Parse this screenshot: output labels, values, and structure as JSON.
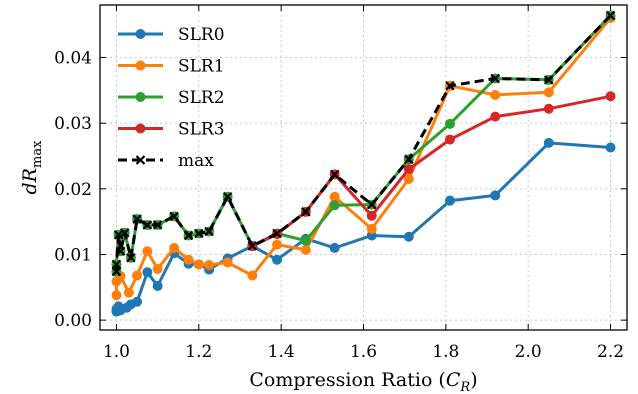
{
  "chart_data": {
    "type": "line",
    "xlabel": "Compression Ratio (",
    "xlabel_symbol": "C",
    "xlabel_sub": "R",
    "xlabel_close": ")",
    "ylabel_main": "dR",
    "ylabel_sub": "max",
    "xlim": [
      0.96,
      2.24
    ],
    "ylim": [
      -0.0015,
      0.048
    ],
    "xticks": [
      1.0,
      1.2,
      1.4,
      1.6,
      1.8,
      2.0,
      2.2
    ],
    "xtick_labels": [
      "1.0",
      "1.2",
      "1.4",
      "1.6",
      "1.8",
      "2.0",
      "2.2"
    ],
    "yticks": [
      0.0,
      0.01,
      0.02,
      0.03,
      0.04
    ],
    "ytick_labels": [
      "0.00",
      "0.01",
      "0.02",
      "0.03",
      "0.04"
    ],
    "grid": true,
    "legend_position": "top-left",
    "series": [
      {
        "name": "SLR0",
        "color": "#1f77b4",
        "marker": "circle",
        "points": [
          [
            1.0,
            0.0013
          ],
          [
            1.0,
            0.0017
          ],
          [
            1.005,
            0.0021
          ],
          [
            1.01,
            0.0015
          ],
          [
            1.025,
            0.0019
          ],
          [
            1.035,
            0.0024
          ],
          [
            1.05,
            0.0028
          ],
          [
            1.075,
            0.0073
          ],
          [
            1.1,
            0.0052
          ],
          [
            1.14,
            0.0102
          ],
          [
            1.175,
            0.0086
          ],
          [
            1.2,
            0.0085
          ],
          [
            1.225,
            0.0077
          ],
          [
            1.27,
            0.0094
          ],
          [
            1.33,
            0.0113
          ],
          [
            1.39,
            0.0092
          ],
          [
            1.46,
            0.0124
          ],
          [
            1.53,
            0.011
          ],
          [
            1.62,
            0.0129
          ],
          [
            1.71,
            0.0127
          ],
          [
            1.81,
            0.0182
          ],
          [
            1.92,
            0.019
          ],
          [
            2.05,
            0.027
          ],
          [
            2.2,
            0.0263
          ]
        ]
      },
      {
        "name": "SLR1",
        "color": "#ff7f0e",
        "marker": "circle",
        "points": [
          [
            1.0,
            0.0038
          ],
          [
            1.0,
            0.0059
          ],
          [
            1.01,
            0.0067
          ],
          [
            1.03,
            0.0042
          ],
          [
            1.05,
            0.0068
          ],
          [
            1.075,
            0.0105
          ],
          [
            1.1,
            0.0078
          ],
          [
            1.14,
            0.011
          ],
          [
            1.175,
            0.0092
          ],
          [
            1.2,
            0.0085
          ],
          [
            1.225,
            0.0084
          ],
          [
            1.27,
            0.0088
          ],
          [
            1.33,
            0.0068
          ],
          [
            1.39,
            0.0115
          ],
          [
            1.46,
            0.0107
          ],
          [
            1.53,
            0.0188
          ],
          [
            1.62,
            0.0139
          ],
          [
            1.71,
            0.0215
          ],
          [
            1.81,
            0.0357
          ],
          [
            1.92,
            0.0343
          ],
          [
            2.05,
            0.0347
          ],
          [
            2.2,
            0.046
          ]
        ]
      },
      {
        "name": "SLR2",
        "color": "#2ca02c",
        "marker": "circle",
        "points": [
          [
            1.0,
            0.0074
          ],
          [
            1.0,
            0.0085
          ],
          [
            1.005,
            0.013
          ],
          [
            1.01,
            0.0105
          ],
          [
            1.02,
            0.0133
          ],
          [
            1.035,
            0.0095
          ],
          [
            1.05,
            0.0154
          ],
          [
            1.075,
            0.0145
          ],
          [
            1.1,
            0.0145
          ],
          [
            1.14,
            0.0158
          ],
          [
            1.175,
            0.0129
          ],
          [
            1.2,
            0.0132
          ],
          [
            1.225,
            0.0135
          ],
          [
            1.27,
            0.0188
          ],
          [
            1.33,
            0.0113
          ],
          [
            1.39,
            0.0132
          ],
          [
            1.46,
            0.0121
          ],
          [
            1.53,
            0.0175
          ],
          [
            1.62,
            0.0176
          ],
          [
            1.71,
            0.0245
          ],
          [
            1.81,
            0.0299
          ],
          [
            1.92,
            0.0368
          ],
          [
            2.05,
            0.0366
          ],
          [
            2.2,
            0.0464
          ]
        ]
      },
      {
        "name": "SLR3",
        "color": "#d62728",
        "marker": "circle",
        "points": [
          [
            1.33,
            0.0113
          ],
          [
            1.39,
            0.0131
          ],
          [
            1.46,
            0.0165
          ],
          [
            1.53,
            0.0222
          ],
          [
            1.62,
            0.0159
          ],
          [
            1.71,
            0.023
          ],
          [
            1.81,
            0.0275
          ],
          [
            1.92,
            0.031
          ],
          [
            2.05,
            0.0322
          ],
          [
            2.2,
            0.0341
          ]
        ]
      },
      {
        "name": "max",
        "color": "#000000",
        "marker": "x",
        "dashed": true,
        "points": [
          [
            1.0,
            0.0074
          ],
          [
            1.0,
            0.0085
          ],
          [
            1.005,
            0.013
          ],
          [
            1.01,
            0.0105
          ],
          [
            1.02,
            0.0133
          ],
          [
            1.035,
            0.0095
          ],
          [
            1.05,
            0.0154
          ],
          [
            1.075,
            0.0145
          ],
          [
            1.1,
            0.0145
          ],
          [
            1.14,
            0.0158
          ],
          [
            1.175,
            0.0129
          ],
          [
            1.2,
            0.0132
          ],
          [
            1.225,
            0.0135
          ],
          [
            1.27,
            0.0188
          ],
          [
            1.33,
            0.0113
          ],
          [
            1.39,
            0.0132
          ],
          [
            1.46,
            0.0165
          ],
          [
            1.53,
            0.0222
          ],
          [
            1.62,
            0.0176
          ],
          [
            1.71,
            0.0245
          ],
          [
            1.81,
            0.0357
          ],
          [
            1.92,
            0.0368
          ],
          [
            2.05,
            0.0366
          ],
          [
            2.2,
            0.0464
          ]
        ]
      }
    ]
  }
}
